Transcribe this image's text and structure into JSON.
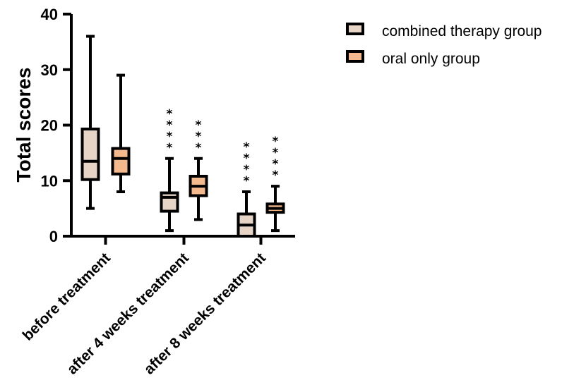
{
  "chart_data": {
    "type": "box",
    "ylabel": "Total scores",
    "ylim": [
      0,
      40
    ],
    "yticks": [
      "0",
      "10",
      "20",
      "30",
      "40"
    ],
    "categories": [
      "before treatment",
      "after 4 weeks treatment",
      "after 8 weeks treatment"
    ],
    "legend_position": "top-right",
    "series": [
      {
        "name": "combined therapy group",
        "color": "#e6d5c6",
        "boxes": [
          {
            "min": 5,
            "q1": 10.2,
            "median": 13.5,
            "q3": 19.3,
            "max": 36
          },
          {
            "min": 1,
            "q1": 4.5,
            "median": 7,
            "q3": 7.8,
            "max": 14,
            "significance": "****"
          },
          {
            "min": 0,
            "q1": 0,
            "median": 2,
            "q3": 4,
            "max": 8,
            "significance": "****"
          }
        ]
      },
      {
        "name": "oral only group",
        "color": "#f5b98e",
        "boxes": [
          {
            "min": 8,
            "q1": 11.2,
            "median": 14,
            "q3": 15.8,
            "max": 29
          },
          {
            "min": 3,
            "q1": 7.3,
            "median": 9,
            "q3": 10.8,
            "max": 14,
            "significance": "***"
          },
          {
            "min": 1,
            "q1": 4.3,
            "median": 5,
            "q3": 5.8,
            "max": 9,
            "significance": "****"
          }
        ]
      }
    ]
  }
}
